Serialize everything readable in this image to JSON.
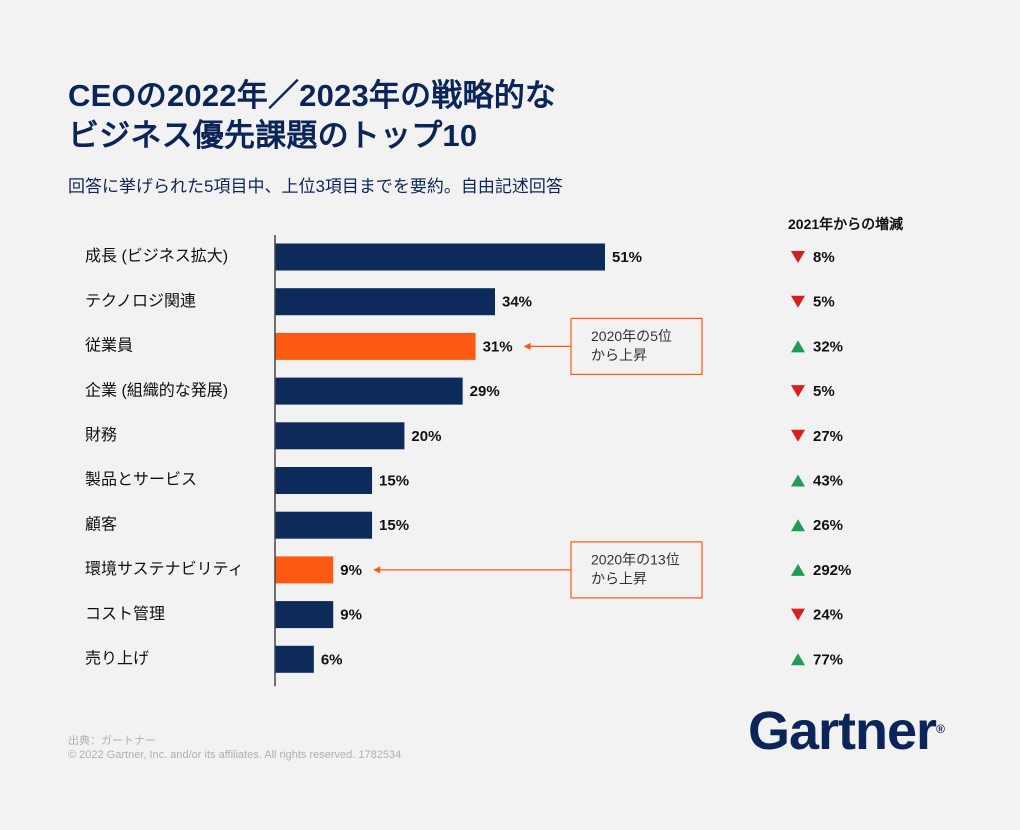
{
  "title_line1": "CEOの2022年／2023年の戦略的な",
  "title_line2": "ビジネス優先課題のトップ10",
  "subtitle": "回答に挙げられた5項目中、上位3項目までを要約。自由記述回答",
  "change_header": "2021年からの増減",
  "footer": {
    "source": "出典：ガートナー",
    "copyright": "© 2022 Gartner, Inc. and/or its affiliates. All rights reserved. 1782534"
  },
  "logo": {
    "text": "Gartner",
    "mark": "®"
  },
  "colors": {
    "bar": "#0c2a5a",
    "highlight": "#ff5a14",
    "up": "#1f9d55",
    "down": "#d61f1f",
    "text": "#111111"
  },
  "chart_data": {
    "type": "bar",
    "orientation": "horizontal",
    "categories": [
      "成長 (ビジネス拡大)",
      "テクノロジ関連",
      "従業員",
      "企業 (組織的な発展)",
      "財務",
      "製品とサービス",
      "顧客",
      "環境サステナビリティ",
      "コスト管理",
      "売り上げ"
    ],
    "values": [
      51,
      34,
      31,
      29,
      20,
      15,
      15,
      9,
      9,
      6
    ],
    "value_labels": [
      "51%",
      "34%",
      "31%",
      "29%",
      "20%",
      "15%",
      "15%",
      "9%",
      "9%",
      "6%"
    ],
    "highlighted": [
      false,
      false,
      true,
      false,
      false,
      false,
      false,
      true,
      false,
      false
    ],
    "changes": [
      {
        "direction": "down",
        "label": "8%"
      },
      {
        "direction": "down",
        "label": "5%"
      },
      {
        "direction": "up",
        "label": "32%"
      },
      {
        "direction": "down",
        "label": "5%"
      },
      {
        "direction": "down",
        "label": "27%"
      },
      {
        "direction": "up",
        "label": "43%"
      },
      {
        "direction": "up",
        "label": "26%"
      },
      {
        "direction": "up",
        "label": "292%"
      },
      {
        "direction": "down",
        "label": "24%"
      },
      {
        "direction": "up",
        "label": "77%"
      }
    ],
    "annotations": [
      {
        "index": 2,
        "lines": [
          "2020年の5位",
          "から上昇"
        ]
      },
      {
        "index": 7,
        "lines": [
          "2020年の13位",
          "から上昇"
        ]
      }
    ],
    "xlim": [
      0,
      51
    ]
  }
}
